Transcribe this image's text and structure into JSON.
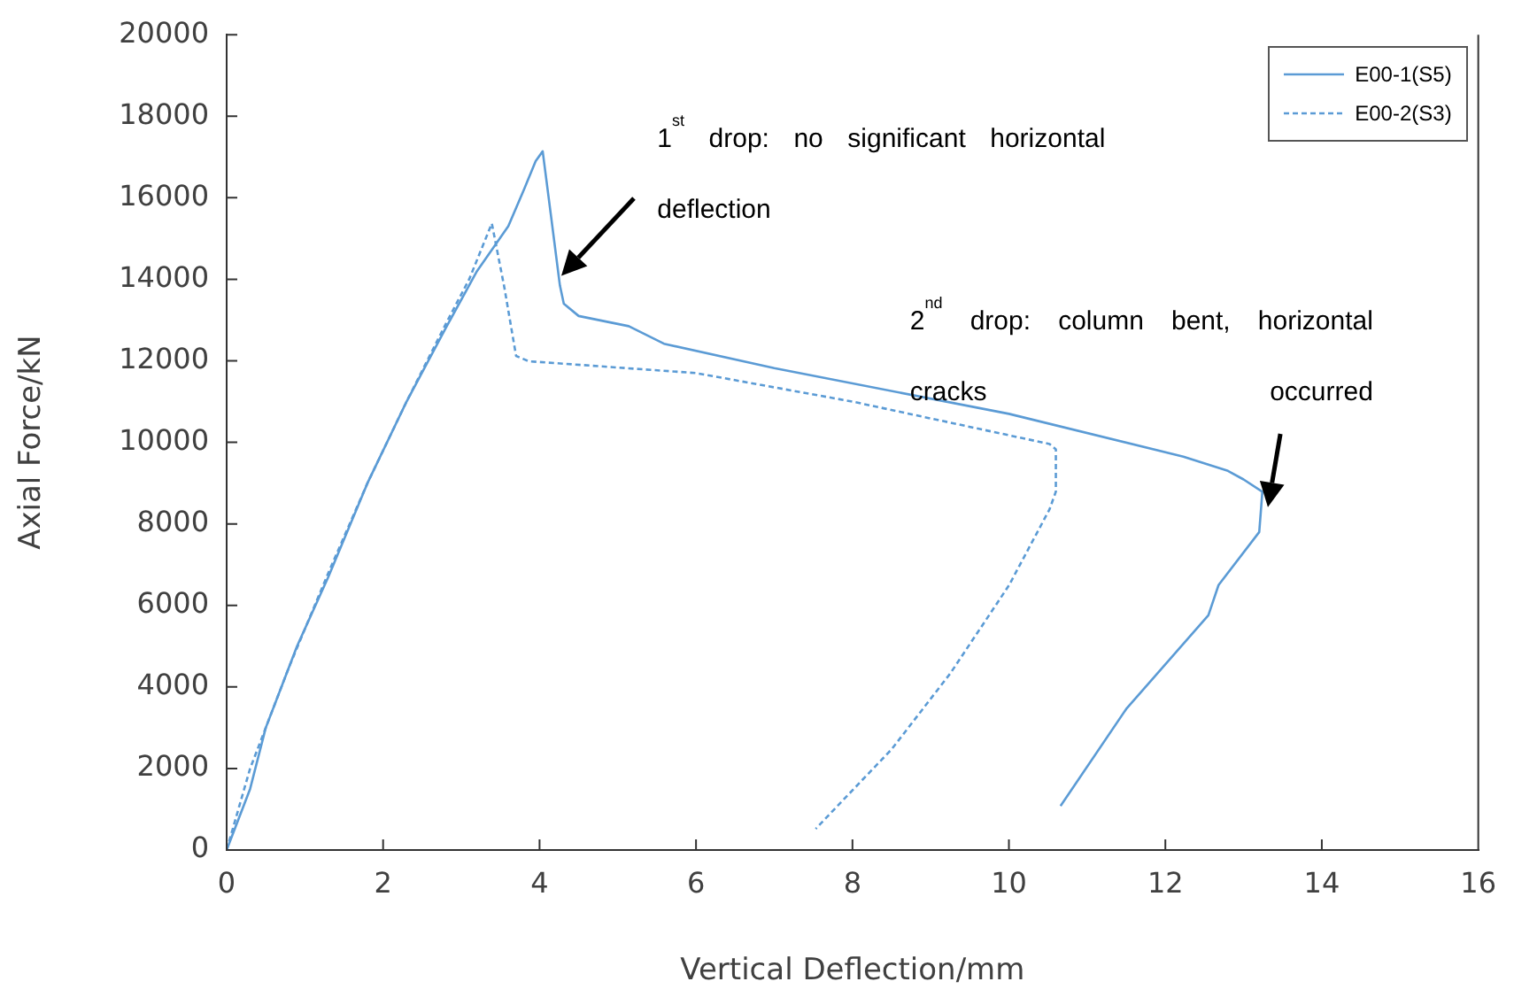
{
  "chart_data": {
    "type": "line",
    "xlabel": "Vertical Deflection/mm",
    "ylabel": "Axial Force/kN",
    "xlim": [
      0,
      16
    ],
    "xticks": [
      0,
      2,
      4,
      6,
      8,
      10,
      12,
      14,
      16
    ],
    "ylim": [
      0,
      20000
    ],
    "yticks": [
      0,
      2000,
      4000,
      6000,
      8000,
      10000,
      12000,
      14000,
      16000,
      18000,
      20000
    ],
    "grid": false,
    "legend": "top right",
    "marker": "none",
    "annotations": [
      "1$^{st}$ drop: no significant horizontal deflection",
      "2$^{nd}$ drop: column bent, horizontal cracks occurred"
    ],
    "series": [
      {
        "name": "E00-1(S5)",
        "color": "#5b9bd5",
        "line_style": "solid",
        "x": [
          0,
          0.3,
          0.5,
          0.9,
          1.3,
          1.8,
          2.3,
          2.8,
          3.2,
          3.6,
          3.8,
          3.95,
          4.04,
          4.15,
          4.26,
          4.31,
          4.5,
          5.14,
          5.59,
          7.0,
          10.0,
          12.23,
          12.8,
          13.0,
          13.24,
          13.2,
          12.68,
          12.55,
          11.5,
          10.66
        ],
        "values": [
          0,
          1500,
          3000,
          5000,
          6700,
          9000,
          11000,
          12800,
          14200,
          15300,
          16200,
          16900,
          17140,
          15500,
          13850,
          13400,
          13100,
          12850,
          12420,
          11820,
          10700,
          9650,
          9300,
          9090,
          8790,
          7800,
          6500,
          5760,
          3460,
          1080
        ]
      },
      {
        "name": "E00-2(S3)",
        "color": "#5b9bd5",
        "line_style": "dashed",
        "x": [
          0,
          0.15,
          0.3,
          0.8,
          1.3,
          1.8,
          2.3,
          2.8,
          3.1,
          3.39,
          3.55,
          3.7,
          3.86,
          6.0,
          8.0,
          10.52,
          10.6,
          10.6,
          10.52,
          10.0,
          9.25,
          8.5,
          7.53
        ],
        "values": [
          0,
          1000,
          2000,
          4500,
          6800,
          9000,
          11000,
          12900,
          14000,
          15370,
          13800,
          12120,
          11990,
          11700,
          11000,
          9960,
          9830,
          8790,
          8360,
          6490,
          4330,
          2470,
          520
        ]
      }
    ]
  }
}
